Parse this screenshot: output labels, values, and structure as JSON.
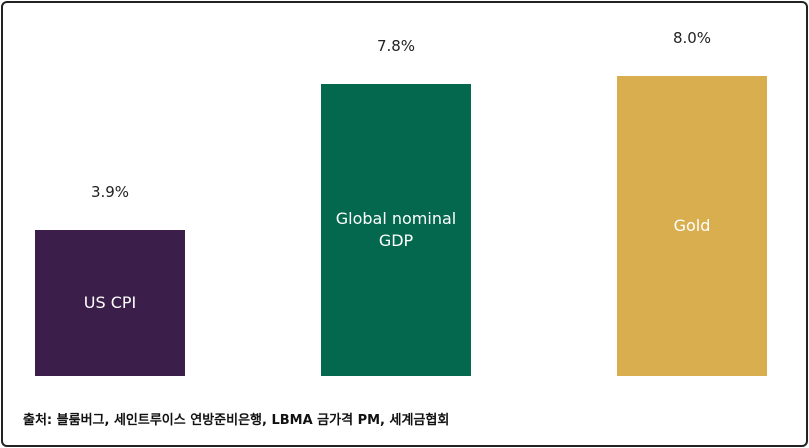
{
  "chart_data": {
    "type": "bar",
    "categories": [
      "US CPI",
      "Global nominal GDP",
      "Gold"
    ],
    "values": [
      3.9,
      7.8,
      8.0
    ],
    "value_labels": [
      "3.9%",
      "7.8%",
      "8.0%"
    ],
    "colors": [
      "#3b1f4a",
      "#04684e",
      "#d9ae4e"
    ],
    "source": "출처: 블룸버그, 세인트루이스 연방준비은행, LBMA 금가격 PM, 세계금협회"
  }
}
